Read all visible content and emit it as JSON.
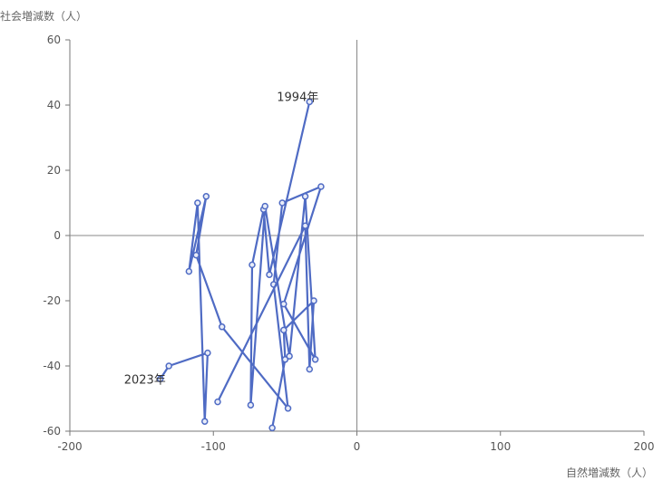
{
  "chart_data": {
    "type": "scatter",
    "connected": true,
    "xlabel": "自然増減数（人）",
    "ylabel": "社会増減数（人）",
    "xlim": [
      -200,
      200
    ],
    "ylim": [
      -60,
      60
    ],
    "xticks": [
      -200,
      -100,
      0,
      100,
      200
    ],
    "yticks": [
      -60,
      -40,
      -20,
      0,
      20,
      40,
      60
    ],
    "xtick_labels": [
      "-200",
      "-100",
      "0",
      "100",
      "200"
    ],
    "ytick_labels": [
      "-60",
      "-40",
      "-20",
      "0",
      "20",
      "40",
      "60"
    ],
    "grid": false,
    "series": [
      {
        "color": "#4f6bc4",
        "points": [
          {
            "x": -33,
            "y": 41
          },
          {
            "x": -61,
            "y": -12
          },
          {
            "x": -65,
            "y": 8
          },
          {
            "x": -73,
            "y": -9
          },
          {
            "x": -74,
            "y": -52
          },
          {
            "x": -64,
            "y": 9
          },
          {
            "x": -47,
            "y": -37
          },
          {
            "x": -36,
            "y": 12
          },
          {
            "x": -29,
            "y": -38
          },
          {
            "x": -51,
            "y": -21
          },
          {
            "x": -25,
            "y": 15
          },
          {
            "x": -52,
            "y": 10
          },
          {
            "x": -58,
            "y": -15
          },
          {
            "x": -48,
            "y": -53
          },
          {
            "x": -94,
            "y": -28
          },
          {
            "x": -112,
            "y": -6
          },
          {
            "x": -105,
            "y": 12
          },
          {
            "x": -117,
            "y": -11
          },
          {
            "x": -111,
            "y": 10
          },
          {
            "x": -106,
            "y": -57
          },
          {
            "x": -104,
            "y": -36
          },
          {
            "x": -131,
            "y": -40
          },
          {
            "x": -137,
            "y": -44
          }
        ]
      },
      {
        "color": "#4f6bc4",
        "points": [
          {
            "x": -97,
            "y": -51
          },
          {
            "x": -36,
            "y": 3
          },
          {
            "x": -33,
            "y": -41
          },
          {
            "x": -30,
            "y": -20
          },
          {
            "x": -51,
            "y": -29
          },
          {
            "x": -50,
            "y": -38
          },
          {
            "x": -59,
            "y": -59
          }
        ]
      }
    ],
    "annotations": [
      {
        "text": "1994年",
        "x": -33,
        "y": 41
      },
      {
        "text": "2023年",
        "x": -137,
        "y": -44
      }
    ]
  }
}
